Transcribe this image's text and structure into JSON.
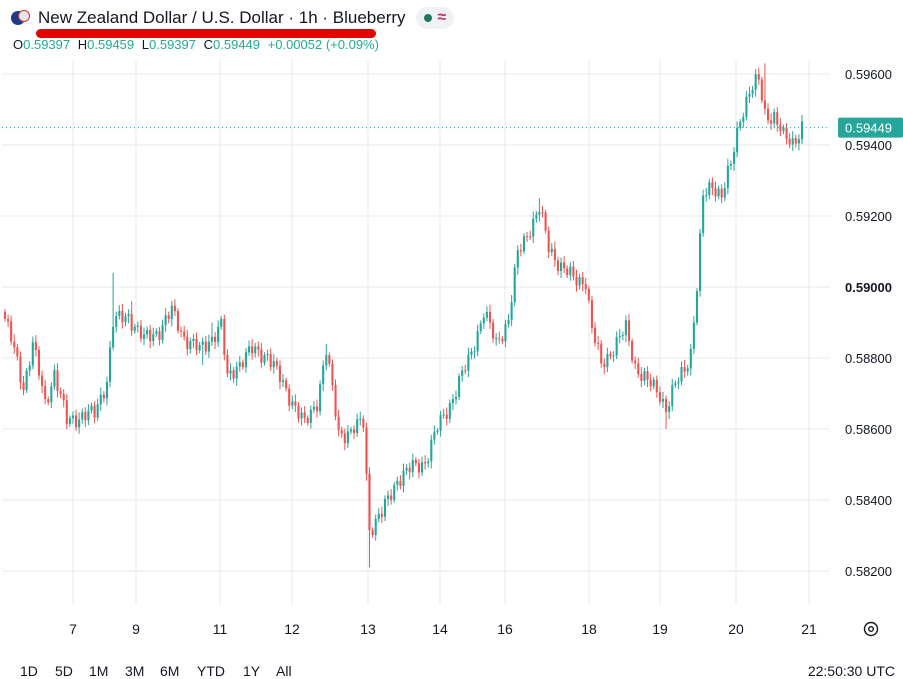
{
  "header": {
    "title": "New Zealand Dollar / U.S. Dollar · 1h · Blueberry",
    "ohlc": {
      "o_label": "O",
      "o": "0.59397",
      "h_label": "H",
      "h": "0.59459",
      "l_label": "L",
      "l": "0.59397",
      "c_label": "C",
      "c": "0.59449",
      "change": "+0.00052 (+0.09%)"
    },
    "flag_icon": "nzd-usd-flag-icon",
    "status_icon": "market-open-dot-icon",
    "wave_icon": "realtime-wave-icon"
  },
  "timeframes": [
    "1D",
    "5D",
    "1M",
    "3M",
    "6M",
    "YTD",
    "1Y",
    "All"
  ],
  "clock": "22:50:30 UTC",
  "colors": {
    "up": "#26a69a",
    "down": "#ef5350",
    "last_price_bg": "#26a69a",
    "grid": "#e6e8ee",
    "underline": "#e10600"
  },
  "chart_data": {
    "type": "candlestick",
    "title": "",
    "xlabel": "",
    "ylabel": "",
    "x_ticks": [
      "7",
      "9",
      "11",
      "12",
      "13",
      "14",
      "16",
      "18",
      "19",
      "20",
      "21"
    ],
    "y_ticks": [
      "0.59600",
      "0.59400",
      "0.59200",
      "0.59000",
      "0.58800",
      "0.58600",
      "0.58400",
      "0.58200"
    ],
    "ylim": [
      0.5808,
      0.5977
    ],
    "last_price": "0.59449",
    "grid": true,
    "keypoints": [
      [
        0,
        0.5891
      ],
      [
        3,
        0.5882
      ],
      [
        6,
        0.5872
      ],
      [
        9,
        0.5884
      ],
      [
        13,
        0.5867
      ],
      [
        16,
        0.5876
      ],
      [
        20,
        0.5862
      ],
      [
        25,
        0.5864
      ],
      [
        29,
        0.5864
      ],
      [
        33,
        0.5874
      ],
      [
        35,
        0.589
      ],
      [
        40,
        0.5892
      ],
      [
        45,
        0.5885
      ],
      [
        50,
        0.5888
      ],
      [
        54,
        0.5893
      ],
      [
        58,
        0.5886
      ],
      [
        63,
        0.5882
      ],
      [
        67,
        0.5886
      ],
      [
        70,
        0.5889
      ],
      [
        72,
        0.5874
      ],
      [
        75,
        0.5878
      ],
      [
        80,
        0.5882
      ],
      [
        85,
        0.5881
      ],
      [
        89,
        0.5874
      ],
      [
        93,
        0.5868
      ],
      [
        97,
        0.5861
      ],
      [
        101,
        0.5868
      ],
      [
        104,
        0.5882
      ],
      [
        108,
        0.5859
      ],
      [
        112,
        0.5859
      ],
      [
        116,
        0.5862
      ],
      [
        118,
        0.5832
      ],
      [
        122,
        0.5836
      ],
      [
        127,
        0.5846
      ],
      [
        132,
        0.5849
      ],
      [
        136,
        0.5851
      ],
      [
        140,
        0.586
      ],
      [
        145,
        0.5869
      ],
      [
        150,
        0.5879
      ],
      [
        155,
        0.5893
      ],
      [
        159,
        0.5884
      ],
      [
        163,
        0.5891
      ],
      [
        166,
        0.5909
      ],
      [
        170,
        0.5917
      ],
      [
        173,
        0.5922
      ],
      [
        176,
        0.5911
      ],
      [
        180,
        0.5906
      ],
      [
        184,
        0.5902
      ],
      [
        188,
        0.5902
      ],
      [
        190,
        0.5888
      ],
      [
        193,
        0.5878
      ],
      [
        197,
        0.5883
      ],
      [
        201,
        0.5888
      ],
      [
        204,
        0.5878
      ],
      [
        208,
        0.5873
      ],
      [
        212,
        0.587
      ],
      [
        214,
        0.5866
      ],
      [
        217,
        0.5872
      ],
      [
        220,
        0.5877
      ],
      [
        222,
        0.5882
      ],
      [
        224,
        0.59
      ],
      [
        226,
        0.5925
      ],
      [
        229,
        0.5929
      ],
      [
        232,
        0.5926
      ],
      [
        235,
        0.5934
      ],
      [
        238,
        0.5948
      ],
      [
        241,
        0.5955
      ],
      [
        244,
        0.5958
      ],
      [
        246,
        0.5949
      ],
      [
        249,
        0.5948
      ],
      [
        252,
        0.5942
      ],
      [
        255,
        0.5941
      ],
      [
        258,
        0.5945
      ]
    ],
    "extremes": [
      [
        35,
        0.5904,
        null
      ],
      [
        41,
        0.5896,
        null
      ],
      [
        67,
        0.589,
        null
      ],
      [
        118,
        0.5821,
        "low"
      ],
      [
        173,
        0.5925,
        null
      ],
      [
        214,
        0.586,
        "low"
      ],
      [
        246,
        0.5963,
        "high"
      ],
      [
        64,
        0.5878,
        "low"
      ],
      [
        104,
        0.5884,
        null
      ]
    ]
  }
}
